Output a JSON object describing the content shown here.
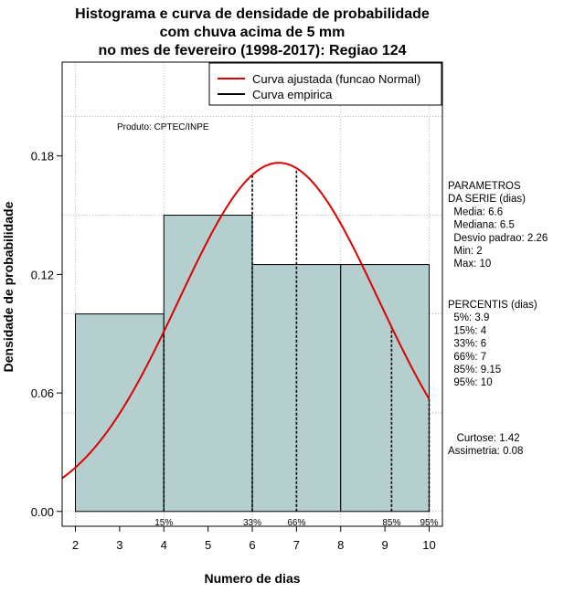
{
  "chart_data": {
    "type": "bar",
    "title": [
      "Histograma e curva de densidade de probabilidade",
      "com chuva acima de 5 mm",
      "no mes de fevereiro (1998-2017): Regiao 124"
    ],
    "xlabel": "Numero de dias",
    "ylabel": "Densidade de probabilidade",
    "xlim": [
      1.7,
      10.3
    ],
    "ylim": [
      -0.0075,
      0.2275
    ],
    "x_ticks": [
      2,
      3,
      4,
      5,
      6,
      7,
      8,
      9,
      10
    ],
    "y_ticks": [
      0.0,
      0.06,
      0.12,
      0.18
    ],
    "y_tick_labels": [
      "0.00",
      "0.06",
      "0.12",
      "0.18"
    ],
    "grid": true,
    "bins": [
      {
        "from": 2,
        "to": 4,
        "density": 0.1
      },
      {
        "from": 4,
        "to": 6,
        "density": 0.15
      },
      {
        "from": 6,
        "to": 8,
        "density": 0.125
      },
      {
        "from": 8,
        "to": 10,
        "density": 0.125
      }
    ],
    "normal_fit": {
      "mean": 6.6,
      "sd": 2.26,
      "x_from": 1.7,
      "x_to": 10
    },
    "percentile_lines": [
      {
        "x": 4,
        "label": "15%"
      },
      {
        "x": 6,
        "label": "33%"
      },
      {
        "x": 7,
        "label": "66%"
      },
      {
        "x": 9.15,
        "label": "85%"
      },
      {
        "x": 10,
        "label": "95%"
      }
    ],
    "legend": {
      "placement": "top-right",
      "entries": [
        {
          "label": "Curva ajustada (funcao Normal)",
          "color": "#dd0000"
        },
        {
          "label": "Curva empirica",
          "color": "#000000"
        }
      ]
    },
    "credit": "Produto: CPTEC/INPE",
    "colors": {
      "bar_fill": "#b5cece",
      "curve": "#dd0000",
      "grid": "#bbbbbb"
    }
  },
  "side_panel": {
    "parametros_lines": [
      "PARAMETROS",
      "DA SERIE (dias)",
      "  Media: 6.6",
      "  Mediana: 6.5",
      "  Desvio padrao: 2.26",
      "  Min: 2",
      "  Max: 10"
    ],
    "percentis_lines": [
      "PERCENTIS (dias)",
      "  5%: 3.9",
      "  15%: 4",
      "  33%: 6",
      "  66%: 7",
      "  85%: 9.15",
      "  95%: 10"
    ],
    "stats_lines": [
      "   Curtose: 1.42",
      "Assimetria: 0.08"
    ]
  }
}
